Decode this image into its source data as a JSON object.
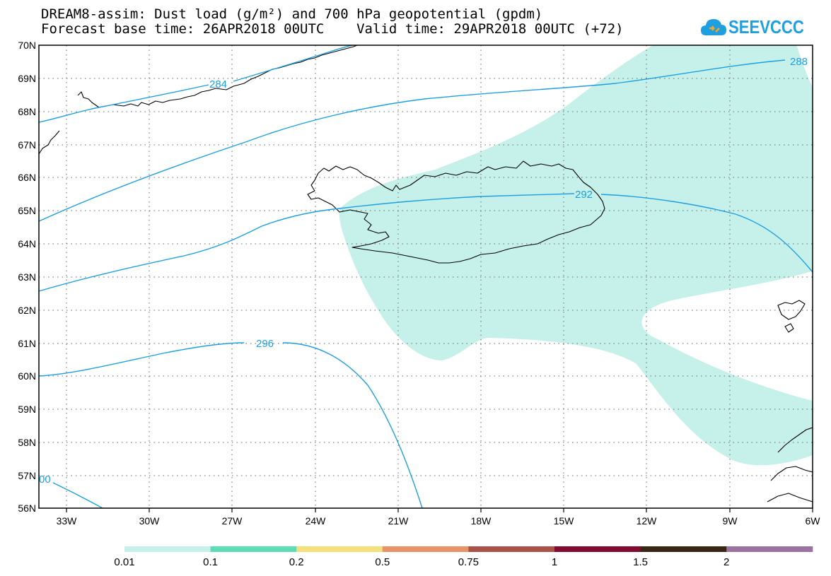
{
  "header": {
    "title_line1": "DREAM8-assim: Dust load (g/m²) and 700 hPa geopotential (gpdm)",
    "title_line2": "Forecast base time: 26APR2018 00UTC    Valid time: 29APR2018 00UTC (+72)"
  },
  "logo": {
    "text": "SEEVCCC",
    "icon": "cloud-logo-icon",
    "color": "#1e9fe0"
  },
  "map": {
    "lon_range": [
      -34.5,
      -6
    ],
    "lat_range": [
      56,
      70
    ],
    "lat_ticks": [
      "70N",
      "69N",
      "68N",
      "67N",
      "66N",
      "65N",
      "64N",
      "63N",
      "62N",
      "61N",
      "60N",
      "59N",
      "58N",
      "57N",
      "56N"
    ],
    "lon_ticks": [
      "33W",
      "30W",
      "27W",
      "24W",
      "21W",
      "18W",
      "15W",
      "12W",
      "9W",
      "6W"
    ],
    "grid": "dotted",
    "contour_color": "#1e9fe0",
    "dust_color": "#c6f0ea",
    "contour_labels": [
      "284",
      "288",
      "292",
      "296",
      "00"
    ]
  },
  "legend": {
    "colors": [
      "#c6f0ea",
      "#5edcb4",
      "#f5e07e",
      "#e89468",
      "#a85248",
      "#820c30",
      "#3a2616",
      "#9b73a0"
    ],
    "labels": [
      "0.01",
      "0.1",
      "0.2",
      "0.5",
      "0.75",
      "1",
      "1.5",
      "2"
    ]
  }
}
